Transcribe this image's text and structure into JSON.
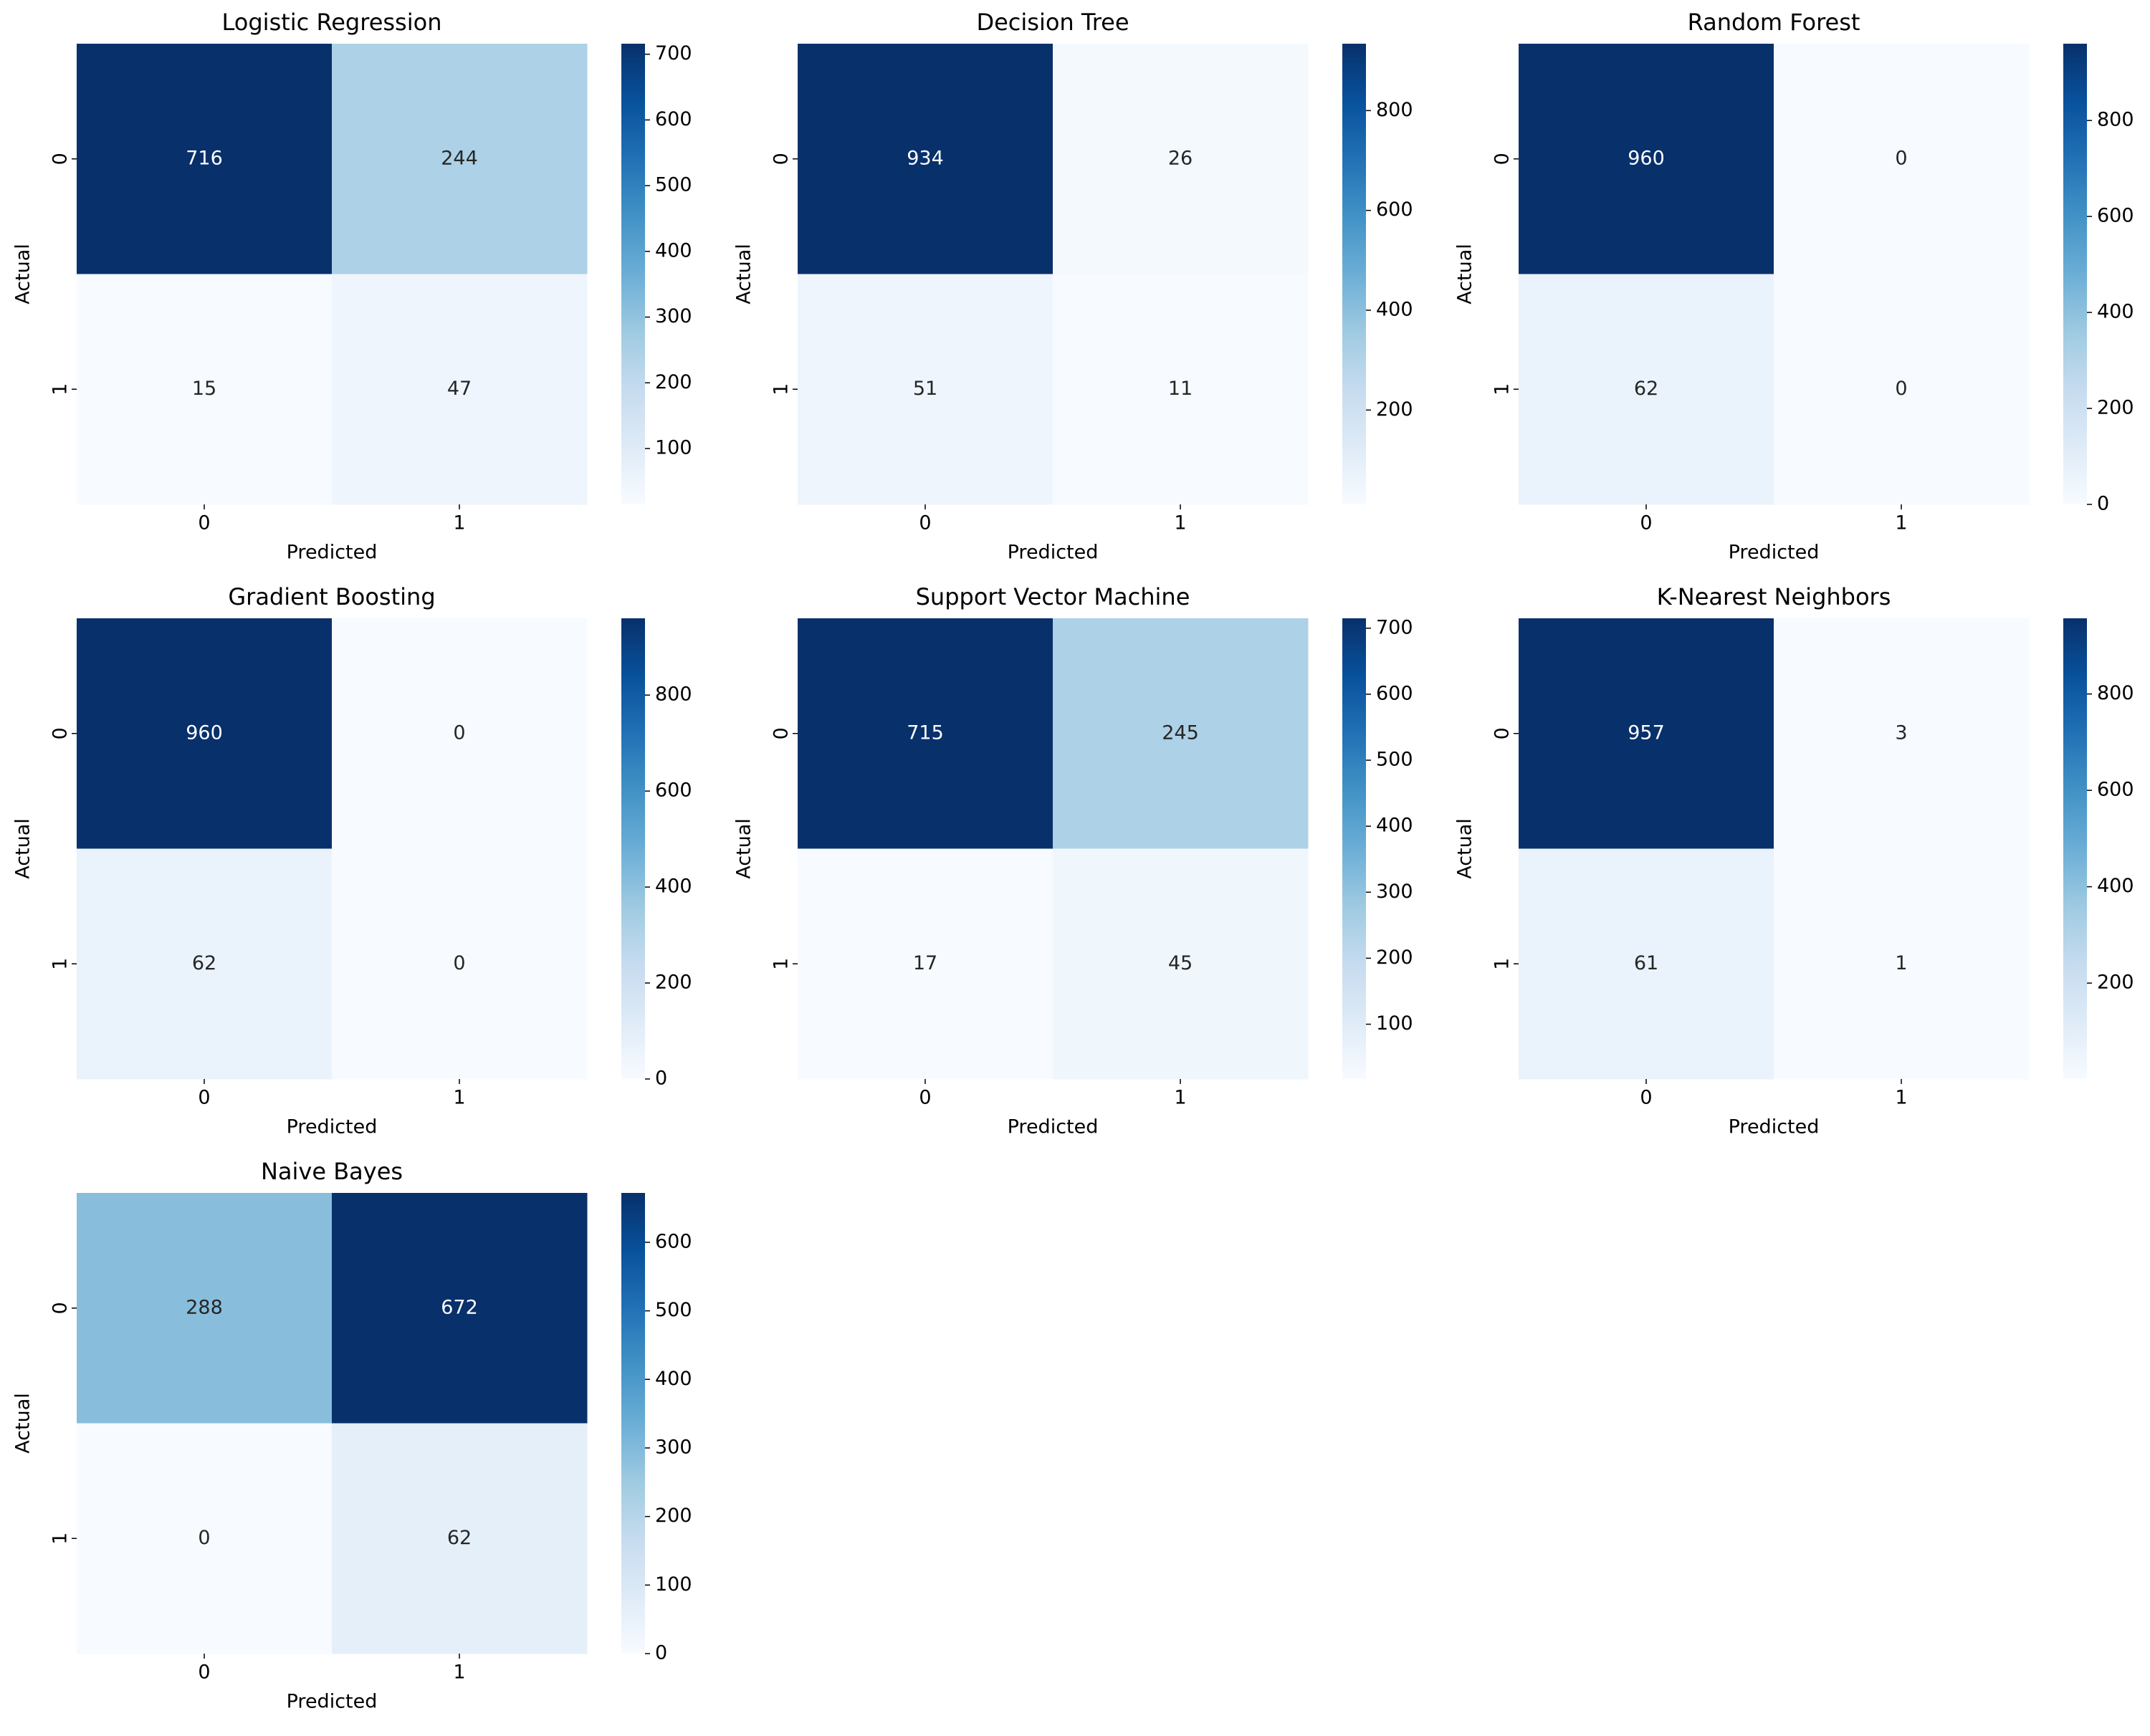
{
  "chart_data": [
    {
      "type": "heatmap",
      "title": "Logistic Regression",
      "xlabel": "Predicted",
      "ylabel": "Actual",
      "x": [
        "0",
        "1"
      ],
      "y": [
        "0",
        "1"
      ],
      "values": [
        [
          716,
          244
        ],
        [
          15,
          47
        ]
      ],
      "colormap": "Blues",
      "zlim": [
        15,
        716
      ],
      "zticks": [
        100,
        200,
        300,
        400,
        500,
        600,
        700
      ]
    },
    {
      "type": "heatmap",
      "title": "Decision Tree",
      "xlabel": "Predicted",
      "ylabel": "Actual",
      "x": [
        "0",
        "1"
      ],
      "y": [
        "0",
        "1"
      ],
      "values": [
        [
          934,
          26
        ],
        [
          51,
          11
        ]
      ],
      "colormap": "Blues",
      "zlim": [
        11,
        934
      ],
      "zticks": [
        200,
        400,
        600,
        800
      ]
    },
    {
      "type": "heatmap",
      "title": "Random Forest",
      "xlabel": "Predicted",
      "ylabel": "Actual",
      "x": [
        "0",
        "1"
      ],
      "y": [
        "0",
        "1"
      ],
      "values": [
        [
          960,
          0
        ],
        [
          62,
          0
        ]
      ],
      "colormap": "Blues",
      "zlim": [
        0,
        960
      ],
      "zticks": [
        0,
        200,
        400,
        600,
        800
      ]
    },
    {
      "type": "heatmap",
      "title": "Gradient Boosting",
      "xlabel": "Predicted",
      "ylabel": "Actual",
      "x": [
        "0",
        "1"
      ],
      "y": [
        "0",
        "1"
      ],
      "values": [
        [
          960,
          0
        ],
        [
          62,
          0
        ]
      ],
      "colormap": "Blues",
      "zlim": [
        0,
        960
      ],
      "zticks": [
        0,
        200,
        400,
        600,
        800
      ]
    },
    {
      "type": "heatmap",
      "title": "Support Vector Machine",
      "xlabel": "Predicted",
      "ylabel": "Actual",
      "x": [
        "0",
        "1"
      ],
      "y": [
        "0",
        "1"
      ],
      "values": [
        [
          715,
          245
        ],
        [
          17,
          45
        ]
      ],
      "colormap": "Blues",
      "zlim": [
        17,
        715
      ],
      "zticks": [
        100,
        200,
        300,
        400,
        500,
        600,
        700
      ]
    },
    {
      "type": "heatmap",
      "title": "K-Nearest Neighbors",
      "xlabel": "Predicted",
      "ylabel": "Actual",
      "x": [
        "0",
        "1"
      ],
      "y": [
        "0",
        "1"
      ],
      "values": [
        [
          957,
          3
        ],
        [
          61,
          1
        ]
      ],
      "colormap": "Blues",
      "zlim": [
        1,
        957
      ],
      "zticks": [
        200,
        400,
        600,
        800
      ]
    },
    {
      "type": "heatmap",
      "title": "Naive Bayes",
      "xlabel": "Predicted",
      "ylabel": "Actual",
      "x": [
        "0",
        "1"
      ],
      "y": [
        "0",
        "1"
      ],
      "values": [
        [
          288,
          672
        ],
        [
          0,
          62
        ]
      ],
      "colormap": "Blues",
      "zlim": [
        0,
        672
      ],
      "zticks": [
        0,
        100,
        200,
        300,
        400,
        500,
        600
      ]
    }
  ]
}
